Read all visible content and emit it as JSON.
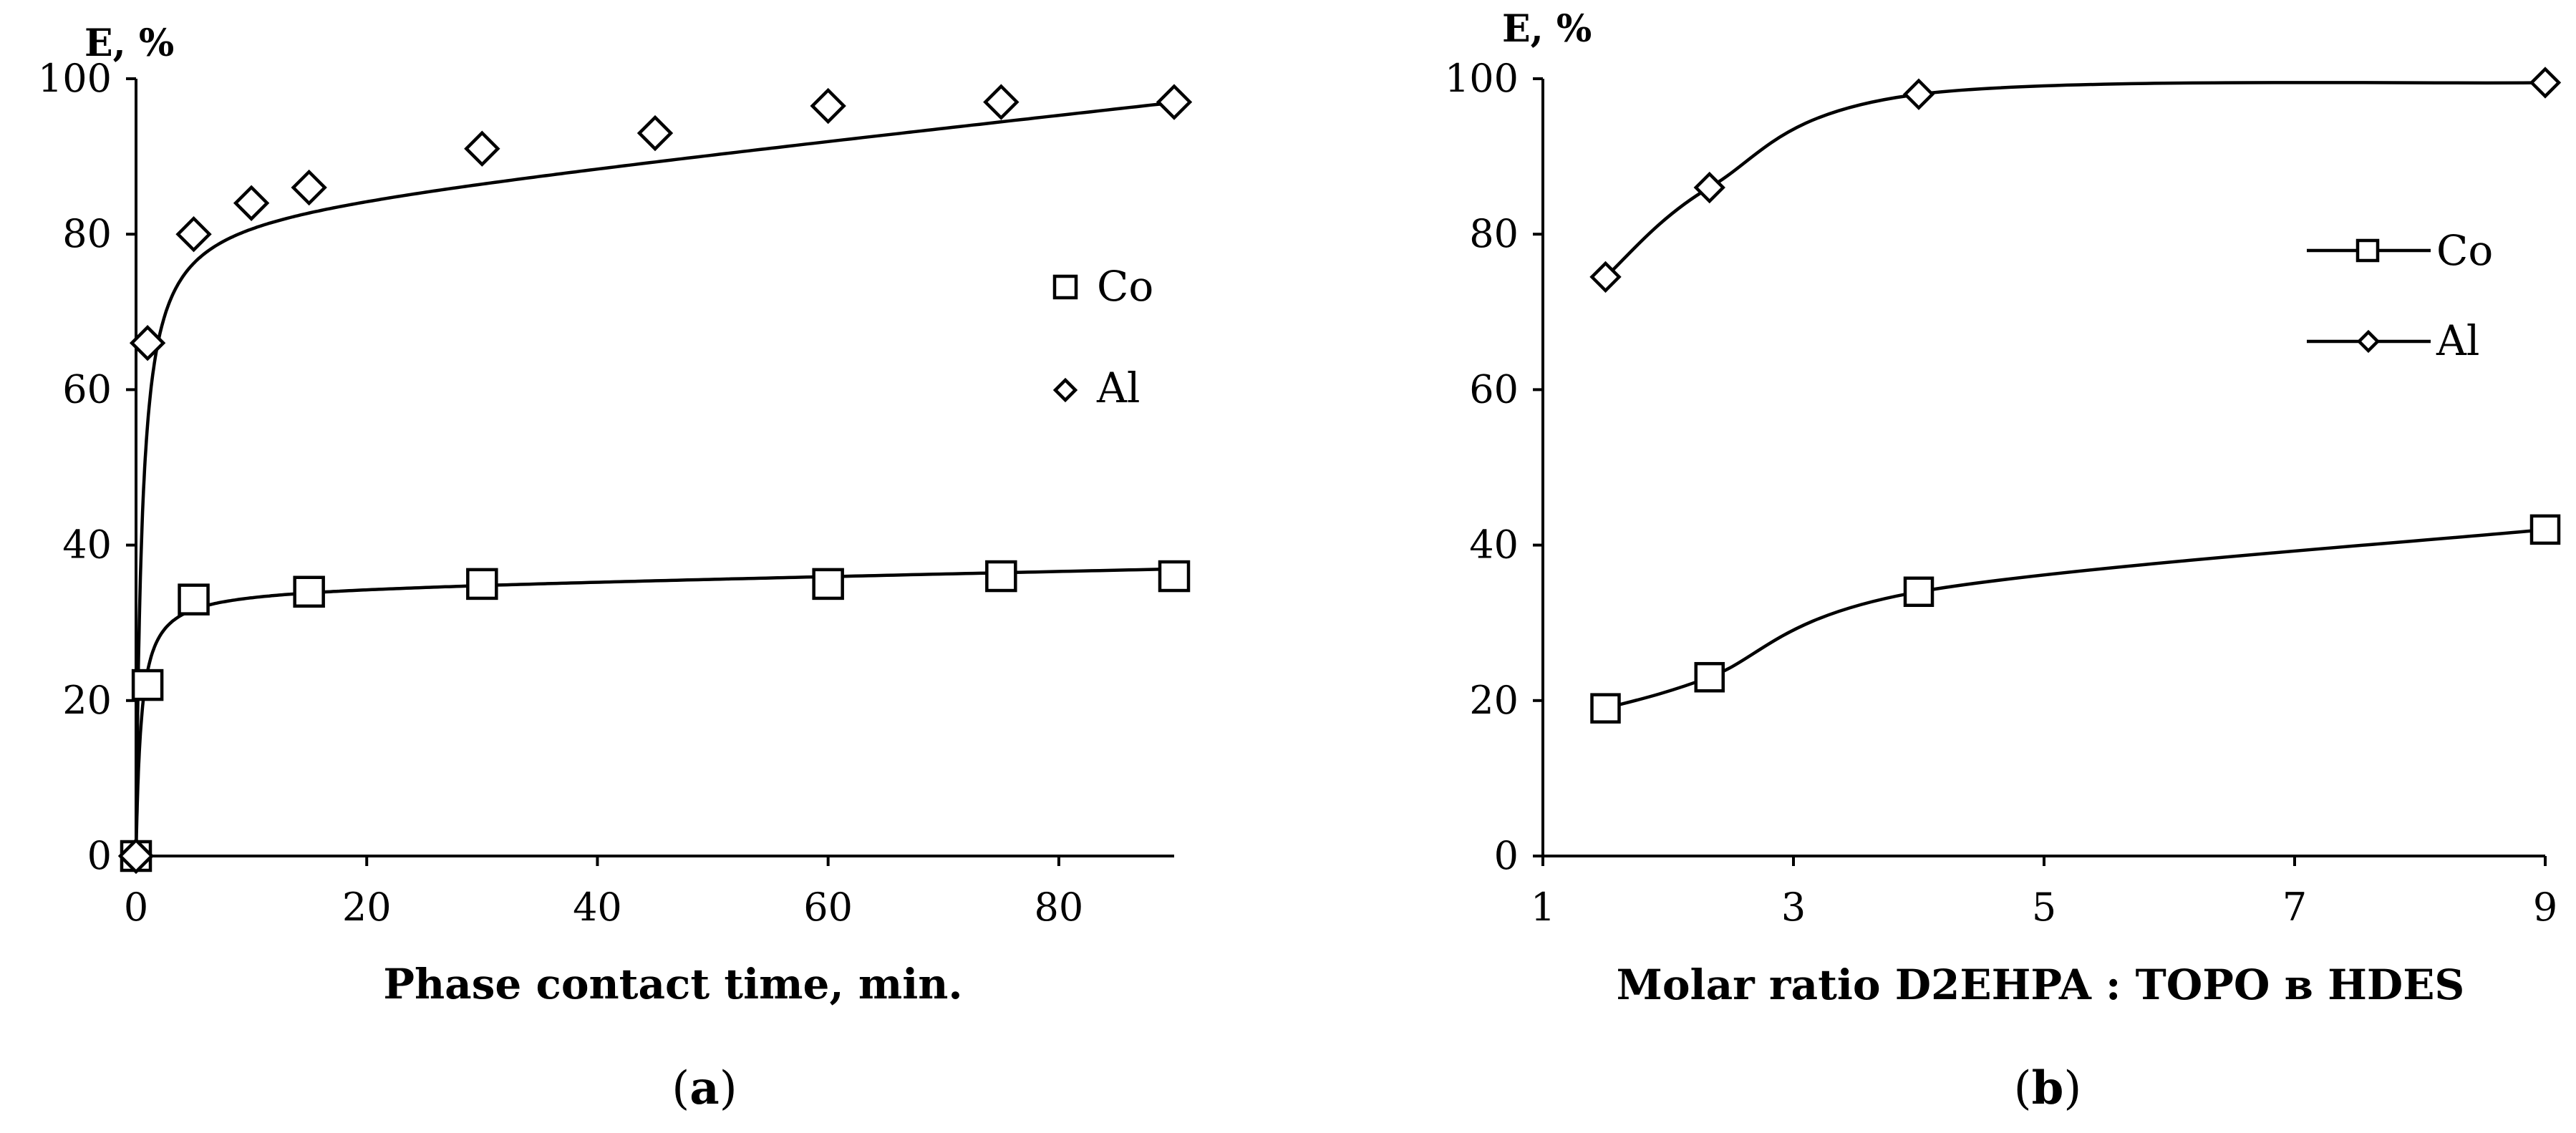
{
  "chart_data": [
    {
      "type": "scatter",
      "panel_id": "a",
      "caption_prefix": "(",
      "caption_letter": "a",
      "caption_suffix": ")",
      "ylabel": "E, %",
      "xlabel": "Phase contact time, min.",
      "xlim": [
        0,
        90
      ],
      "ylim": [
        0,
        100
      ],
      "xticks": [
        0,
        20,
        40,
        60,
        80
      ],
      "yticks": [
        0,
        20,
        40,
        60,
        80,
        100
      ],
      "legend_position": "right-middle",
      "series": [
        {
          "name": "Co",
          "marker": "square",
          "x": [
            0,
            1,
            5,
            15,
            30,
            60,
            75,
            90
          ],
          "y": [
            0,
            22,
            33,
            34,
            35,
            35,
            36,
            36
          ]
        },
        {
          "name": "Al",
          "marker": "diamond",
          "x": [
            0,
            1,
            5,
            10,
            15,
            30,
            45,
            60,
            75,
            90
          ],
          "y": [
            0,
            66,
            80,
            84,
            86,
            91,
            93,
            96.5,
            97,
            97
          ]
        }
      ]
    },
    {
      "type": "line",
      "panel_id": "b",
      "caption_prefix": "(",
      "caption_letter": "b",
      "caption_suffix": ")",
      "ylabel": "E, %",
      "xlabel": "Molar ratio D2EHPA : TOPO в HDES",
      "xlim": [
        1,
        9
      ],
      "ylim": [
        0,
        100
      ],
      "xticks": [
        1,
        3,
        5,
        7,
        9
      ],
      "yticks": [
        0,
        20,
        40,
        60,
        80,
        100
      ],
      "legend_position": "top-right",
      "series": [
        {
          "name": "Co",
          "marker": "square",
          "x": [
            1.5,
            2.33,
            4,
            9
          ],
          "y": [
            19,
            23,
            34,
            42
          ]
        },
        {
          "name": "Al",
          "marker": "diamond",
          "x": [
            1.5,
            2.33,
            4,
            9
          ],
          "y": [
            74.5,
            86,
            98,
            99.5
          ]
        }
      ]
    }
  ]
}
